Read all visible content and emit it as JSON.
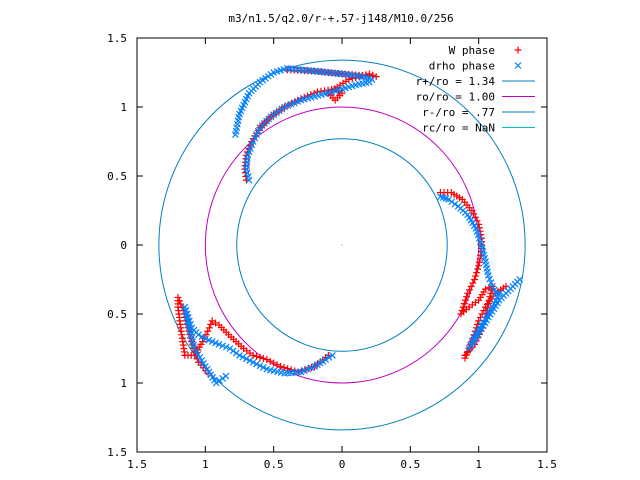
{
  "chart_data": {
    "type": "scatter",
    "title": "m3/n1.5/q2.0/r-+.57-j148/M10.0/256",
    "xlabel": "",
    "ylabel": "",
    "xlim": [
      -1.5,
      1.5
    ],
    "ylim": [
      -1.5,
      1.5
    ],
    "x_ticks": [
      -1.5,
      -1,
      -0.5,
      0,
      0.5,
      1,
      1.5
    ],
    "x_tick_labels": [
      "1.5",
      "1",
      "0.5",
      "0",
      "0.5",
      "1",
      "1.5"
    ],
    "y_ticks": [
      1.5,
      1,
      0.5,
      0,
      -0.5,
      -1,
      -1.5
    ],
    "y_tick_labels": [
      "1.5",
      "1",
      "0.5",
      "0",
      "0.5",
      "1",
      "1.5"
    ],
    "grid": false,
    "legend_position": "top-right",
    "colors": {
      "w_phase": "#ff0000",
      "drho_phase": "#0080ff",
      "r_plus": "#0080c0",
      "r_o": "#c000c0",
      "r_minus": "#0080c0",
      "r_c": "#00c0c0"
    },
    "series": [
      {
        "name": "W phase",
        "marker": "plus",
        "arms": [
          [
            [
              -0.7,
              0.47
            ],
            [
              -0.71,
              0.55
            ],
            [
              -0.7,
              0.65
            ],
            [
              -0.66,
              0.75
            ],
            [
              -0.6,
              0.85
            ],
            [
              -0.52,
              0.93
            ],
            [
              -0.42,
              1.0
            ],
            [
              -0.3,
              1.06
            ],
            [
              -0.18,
              1.11
            ],
            [
              -0.05,
              1.13
            ],
            [
              0.0,
              1.1
            ],
            [
              -0.05,
              1.05
            ],
            [
              -0.1,
              1.1
            ],
            [
              0.05,
              1.2
            ],
            [
              0.2,
              1.24
            ],
            [
              0.25,
              1.22
            ],
            [
              0.0,
              1.24
            ],
            [
              -0.2,
              1.26
            ],
            [
              -0.4,
              1.27
            ]
          ],
          [
            [
              0.72,
              0.38
            ],
            [
              0.8,
              0.38
            ],
            [
              0.88,
              0.33
            ],
            [
              0.95,
              0.25
            ],
            [
              1.0,
              0.15
            ],
            [
              1.02,
              0.05
            ],
            [
              1.02,
              -0.05
            ],
            [
              1.0,
              -0.15
            ],
            [
              0.97,
              -0.25
            ],
            [
              0.92,
              -0.35
            ],
            [
              0.87,
              -0.5
            ],
            [
              0.93,
              -0.45
            ],
            [
              1.0,
              -0.4
            ],
            [
              1.05,
              -0.32
            ],
            [
              1.1,
              -0.3
            ],
            [
              1.03,
              -0.6
            ],
            [
              0.97,
              -0.72
            ],
            [
              0.9,
              -0.8
            ],
            [
              0.9,
              -0.82
            ],
            [
              0.95,
              -0.7
            ],
            [
              1.0,
              -0.55
            ],
            [
              1.05,
              -0.45
            ],
            [
              1.12,
              -0.35
            ],
            [
              1.2,
              -0.3
            ]
          ],
          [
            [
              -0.1,
              -0.8
            ],
            [
              -0.2,
              -0.88
            ],
            [
              -0.32,
              -0.92
            ],
            [
              -0.45,
              -0.88
            ],
            [
              -0.55,
              -0.83
            ],
            [
              -0.65,
              -0.8
            ],
            [
              -0.72,
              -0.75
            ],
            [
              -0.83,
              -0.65
            ],
            [
              -0.9,
              -0.58
            ],
            [
              -0.95,
              -0.55
            ],
            [
              -0.97,
              -0.6
            ],
            [
              -1.02,
              -0.7
            ],
            [
              -1.08,
              -0.8
            ],
            [
              -1.15,
              -0.8
            ],
            [
              -1.18,
              -0.6
            ],
            [
              -1.2,
              -0.45
            ],
            [
              -1.2,
              -0.38
            ],
            [
              -1.15,
              -0.5
            ],
            [
              -1.1,
              -0.7
            ],
            [
              -1.05,
              -0.85
            ],
            [
              -0.98,
              -0.93
            ]
          ]
        ]
      },
      {
        "name": "drho phase",
        "marker": "cross",
        "arms": [
          [
            [
              -0.68,
              0.47
            ],
            [
              -0.7,
              0.55
            ],
            [
              -0.69,
              0.65
            ],
            [
              -0.65,
              0.75
            ],
            [
              -0.6,
              0.85
            ],
            [
              -0.52,
              0.93
            ],
            [
              -0.42,
              1.0
            ],
            [
              -0.3,
              1.05
            ],
            [
              -0.15,
              1.09
            ],
            [
              0.0,
              1.13
            ],
            [
              0.1,
              1.16
            ],
            [
              0.2,
              1.18
            ],
            [
              0.22,
              1.2
            ],
            [
              0.15,
              1.22
            ],
            [
              0.0,
              1.24
            ],
            [
              -0.2,
              1.26
            ],
            [
              -0.4,
              1.28
            ],
            [
              -0.5,
              1.25
            ],
            [
              -0.6,
              1.18
            ],
            [
              -0.68,
              1.1
            ],
            [
              -0.75,
              0.95
            ],
            [
              -0.78,
              0.8
            ]
          ],
          [
            [
              0.72,
              0.35
            ],
            [
              0.78,
              0.33
            ],
            [
              0.85,
              0.28
            ],
            [
              0.92,
              0.22
            ],
            [
              0.98,
              0.12
            ],
            [
              1.02,
              0.0
            ],
            [
              1.05,
              -0.12
            ],
            [
              1.07,
              -0.22
            ],
            [
              1.1,
              -0.3
            ],
            [
              1.13,
              -0.35
            ],
            [
              1.15,
              -0.35
            ],
            [
              1.1,
              -0.45
            ],
            [
              1.02,
              -0.58
            ],
            [
              0.98,
              -0.65
            ],
            [
              0.93,
              -0.75
            ],
            [
              1.15,
              -0.4
            ],
            [
              1.2,
              -0.35
            ],
            [
              1.25,
              -0.3
            ],
            [
              1.3,
              -0.25
            ]
          ],
          [
            [
              -0.07,
              -0.8
            ],
            [
              -0.12,
              -0.83
            ],
            [
              -0.2,
              -0.88
            ],
            [
              -0.3,
              -0.92
            ],
            [
              -0.42,
              -0.93
            ],
            [
              -0.55,
              -0.9
            ],
            [
              -0.65,
              -0.85
            ],
            [
              -0.75,
              -0.8
            ],
            [
              -0.82,
              -0.75
            ],
            [
              -0.9,
              -0.72
            ],
            [
              -1.0,
              -0.68
            ],
            [
              -1.05,
              -0.65
            ],
            [
              -1.1,
              -0.6
            ],
            [
              -1.15,
              -0.45
            ],
            [
              -1.12,
              -0.6
            ],
            [
              -1.08,
              -0.75
            ],
            [
              -1.0,
              -0.88
            ],
            [
              -0.92,
              -1.0
            ],
            [
              -0.85,
              -0.95
            ]
          ]
        ]
      }
    ],
    "circles": [
      {
        "name": "r+/ro = 1.34",
        "radius": 1.34,
        "color": "#0080c0"
      },
      {
        "name": "ro/ro = 1.00",
        "radius": 1.0,
        "color": "#c000c0"
      },
      {
        "name": "r-/ro = .77",
        "radius": 0.77,
        "color": "#0080c0"
      },
      {
        "name": "rc/ro = NaN",
        "radius": null,
        "color": "#00c0c0"
      }
    ],
    "legend": [
      "W phase",
      "drho phase",
      "r+/ro = 1.34",
      "ro/ro = 1.00",
      "r-/ro = .77",
      "rc/ro = NaN"
    ]
  }
}
